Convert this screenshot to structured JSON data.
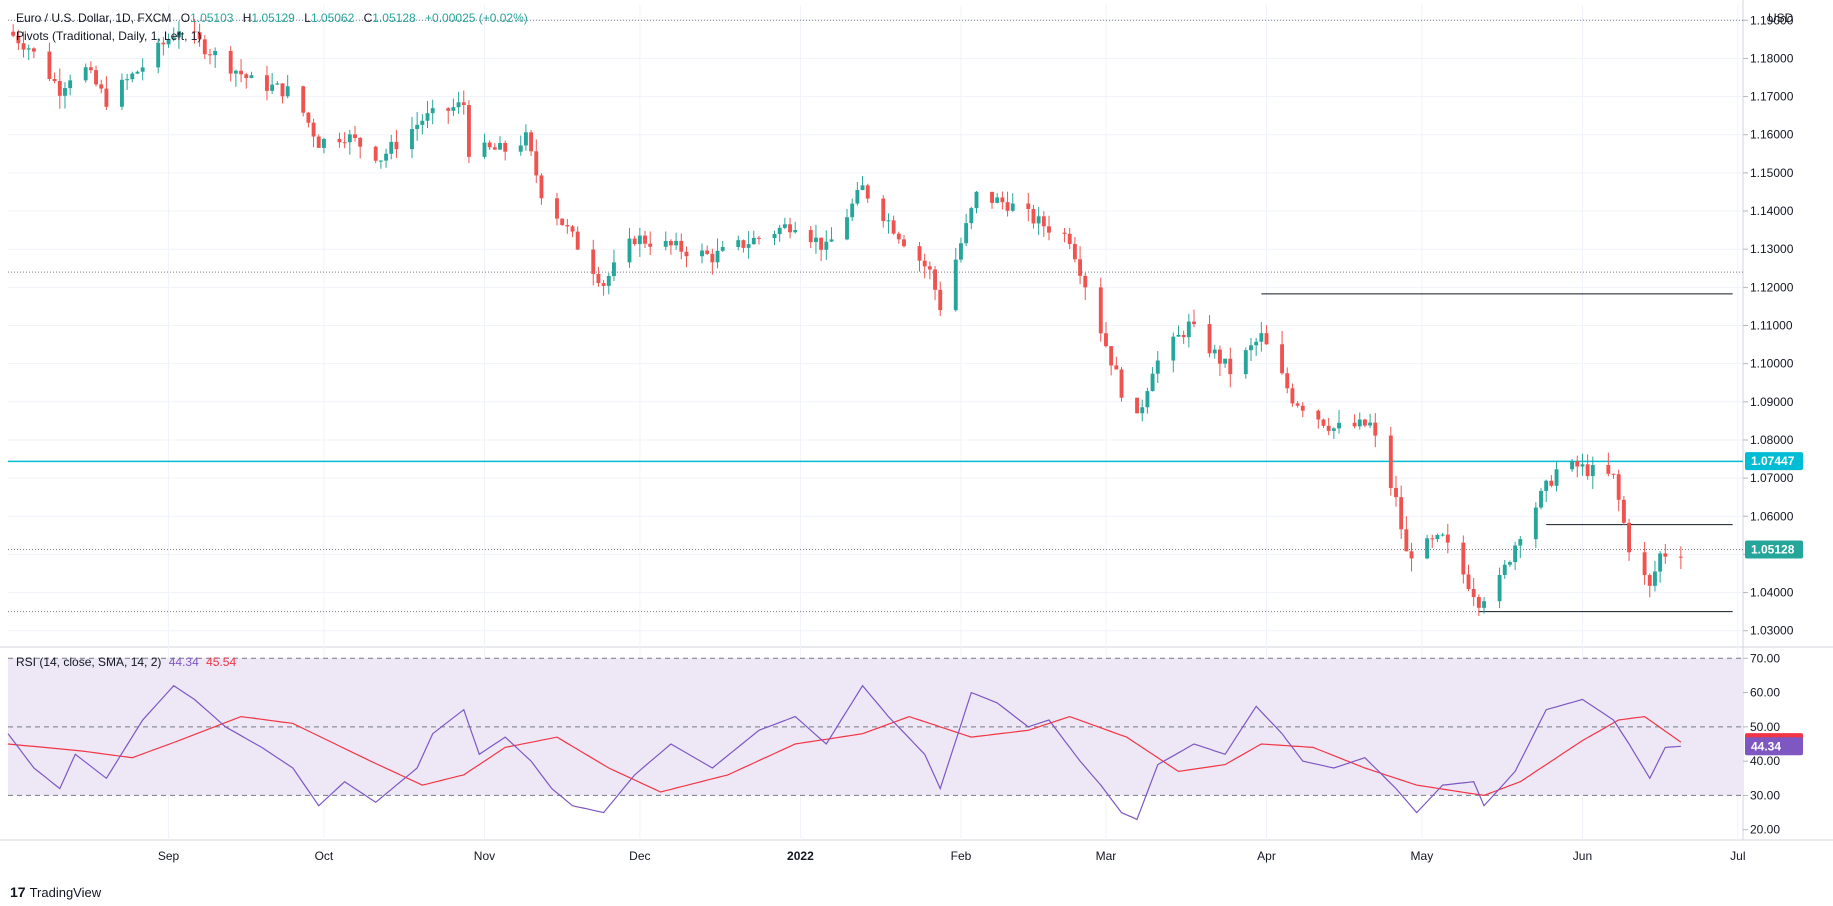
{
  "header": {
    "symbol": "Euro / U.S. Dollar, 1D, FXCM",
    "o_label": "O",
    "o": "1.05103",
    "h_label": "H",
    "h": "1.05129",
    "l_label": "L",
    "l": "1.05062",
    "c_label": "C",
    "c": "1.05128",
    "change": "+0.00025 (+0.02%)",
    "pivots_label": "Pivots (Traditional, Daily, 1, Left, 1)"
  },
  "currency_label": "USD",
  "rsi_header": {
    "label": "RSI (14, close, SMA, 14, 2)",
    "rsi_value": "44.34",
    "ma_value": "45.54"
  },
  "brand": {
    "name": "TradingView",
    "logo_glyph": "17"
  },
  "colors": {
    "up": "#26a69a",
    "down": "#ef5350",
    "price_line": "#00bcd4",
    "rsi_line": "#7e57c2",
    "rsi_ma": "#f23645",
    "rsi_band": "#ede7f6"
  },
  "chart_data": {
    "type": "candlestick",
    "title": "Euro / U.S. Dollar, 1D, FXCM",
    "y_axis_label": "USD",
    "y_ticks": [
      "1.19000",
      "1.18000",
      "1.17000",
      "1.16000",
      "1.15000",
      "1.14000",
      "1.13000",
      "1.12000",
      "1.11000",
      "1.10000",
      "1.09000",
      "1.08000",
      "1.07000",
      "1.06000",
      "1.05000",
      "1.04000",
      "1.03000"
    ],
    "y_range": [
      1.026,
      1.194
    ],
    "x_labels": [
      "Sep",
      "Oct",
      "Nov",
      "Dec",
      "2022",
      "Feb",
      "Mar",
      "Apr",
      "May",
      "Jun",
      "Jul"
    ],
    "x_label_dates": [
      "2021-09-01",
      "2021-10-01",
      "2021-11-01",
      "2021-12-01",
      "2022-01-01",
      "2022-02-01",
      "2022-03-01",
      "2022-04-01",
      "2022-05-01",
      "2022-06-01",
      "2022-07-01"
    ],
    "date_range": [
      "2021-08-01",
      "2022-07-02"
    ],
    "anchors": [
      {
        "date": "2021-08-01",
        "close": 1.187
      },
      {
        "date": "2021-08-05",
        "close": 1.183
      },
      {
        "date": "2021-08-11",
        "close": 1.172
      },
      {
        "date": "2021-08-15",
        "close": 1.179
      },
      {
        "date": "2021-08-20",
        "close": 1.169
      },
      {
        "date": "2021-08-27",
        "close": 1.178
      },
      {
        "date": "2021-09-03",
        "close": 1.188
      },
      {
        "date": "2021-09-08",
        "close": 1.183
      },
      {
        "date": "2021-09-17",
        "close": 1.174
      },
      {
        "date": "2021-09-25",
        "close": 1.171
      },
      {
        "date": "2021-09-30",
        "close": 1.158
      },
      {
        "date": "2021-10-05",
        "close": 1.16
      },
      {
        "date": "2021-10-12",
        "close": 1.154
      },
      {
        "date": "2021-10-20",
        "close": 1.164
      },
      {
        "date": "2021-10-28",
        "close": 1.168
      },
      {
        "date": "2021-10-29",
        "close": 1.156
      },
      {
        "date": "2021-11-05",
        "close": 1.156
      },
      {
        "date": "2021-11-09",
        "close": 1.159
      },
      {
        "date": "2021-11-12",
        "close": 1.145
      },
      {
        "date": "2021-11-24",
        "close": 1.121
      },
      {
        "date": "2021-11-30",
        "close": 1.133
      },
      {
        "date": "2021-12-15",
        "close": 1.128
      },
      {
        "date": "2021-12-31",
        "close": 1.137
      },
      {
        "date": "2022-01-06",
        "close": 1.13
      },
      {
        "date": "2022-01-13",
        "close": 1.146
      },
      {
        "date": "2022-01-20",
        "close": 1.134
      },
      {
        "date": "2022-01-26",
        "close": 1.124
      },
      {
        "date": "2022-01-28",
        "close": 1.115
      },
      {
        "date": "2022-02-04",
        "close": 1.144
      },
      {
        "date": "2022-02-10",
        "close": 1.142
      },
      {
        "date": "2022-02-16",
        "close": 1.137
      },
      {
        "date": "2022-02-22",
        "close": 1.133
      },
      {
        "date": "2022-03-04",
        "close": 1.093
      },
      {
        "date": "2022-03-07",
        "close": 1.085
      },
      {
        "date": "2022-03-10",
        "close": 1.099
      },
      {
        "date": "2022-03-17",
        "close": 1.11
      },
      {
        "date": "2022-03-25",
        "close": 1.098
      },
      {
        "date": "2022-03-31",
        "close": 1.107
      },
      {
        "date": "2022-04-06",
        "close": 1.091
      },
      {
        "date": "2022-04-14",
        "close": 1.083
      },
      {
        "date": "2022-04-21",
        "close": 1.084
      },
      {
        "date": "2022-04-26",
        "close": 1.064
      },
      {
        "date": "2022-04-28",
        "close": 1.05
      },
      {
        "date": "2022-05-05",
        "close": 1.054
      },
      {
        "date": "2022-05-12",
        "close": 1.038
      },
      {
        "date": "2022-05-16",
        "close": 1.043
      },
      {
        "date": "2022-05-20",
        "close": 1.056
      },
      {
        "date": "2022-05-27",
        "close": 1.072
      },
      {
        "date": "2022-05-31",
        "close": 1.073
      },
      {
        "date": "2022-06-07",
        "close": 1.07
      },
      {
        "date": "2022-06-10",
        "close": 1.052
      },
      {
        "date": "2022-06-14",
        "close": 1.041
      },
      {
        "date": "2022-06-16",
        "close": 1.05
      },
      {
        "date": "2022-06-20",
        "close": 1.051
      }
    ],
    "horizontal_levels": [
      {
        "price": 1.0744,
        "from": "2021-08-01",
        "to": "2022-07-02",
        "style": "solid-cyan"
      },
      {
        "price": 1.0513,
        "from": "2021-08-01",
        "to": "2022-07-02",
        "style": "dotted"
      },
      {
        "price": 1.19,
        "from": "2021-08-01",
        "to": "2022-07-02",
        "style": "dotted"
      },
      {
        "price": 1.124,
        "from": "2021-08-01",
        "to": "2022-07-02",
        "style": "dotted"
      },
      {
        "price": 1.035,
        "from": "2021-08-01",
        "to": "2022-05-12",
        "style": "dotted"
      },
      {
        "price": 1.1183,
        "from": "2022-03-31",
        "to": "2022-06-30",
        "style": "solid"
      },
      {
        "price": 1.0578,
        "from": "2022-05-25",
        "to": "2022-06-30",
        "style": "solid"
      },
      {
        "price": 1.035,
        "from": "2022-05-12",
        "to": "2022-06-30",
        "style": "solid"
      }
    ],
    "price_labels": [
      {
        "value": "1.07447",
        "price": 1.07447,
        "kind": "level"
      },
      {
        "value": "1.05128",
        "price": 1.05128,
        "kind": "last"
      }
    ],
    "rsi": {
      "y_ticks": [
        "70.00",
        "60.00",
        "50.00",
        "40.00",
        "30.00",
        "20.00"
      ],
      "y_range": [
        17,
        73
      ],
      "band": [
        30,
        70
      ],
      "midline": 50,
      "rsi_anchors": [
        {
          "date": "2021-08-01",
          "v": 48
        },
        {
          "date": "2021-08-06",
          "v": 38
        },
        {
          "date": "2021-08-11",
          "v": 32
        },
        {
          "date": "2021-08-14",
          "v": 42
        },
        {
          "date": "2021-08-20",
          "v": 35
        },
        {
          "date": "2021-08-27",
          "v": 52
        },
        {
          "date": "2021-09-02",
          "v": 62
        },
        {
          "date": "2021-09-06",
          "v": 58
        },
        {
          "date": "2021-09-12",
          "v": 50
        },
        {
          "date": "2021-09-19",
          "v": 44
        },
        {
          "date": "2021-09-25",
          "v": 38
        },
        {
          "date": "2021-09-30",
          "v": 27
        },
        {
          "date": "2021-10-05",
          "v": 34
        },
        {
          "date": "2021-10-11",
          "v": 28
        },
        {
          "date": "2021-10-19",
          "v": 38
        },
        {
          "date": "2021-10-22",
          "v": 48
        },
        {
          "date": "2021-10-28",
          "v": 55
        },
        {
          "date": "2021-10-31",
          "v": 42
        },
        {
          "date": "2021-11-05",
          "v": 47
        },
        {
          "date": "2021-11-10",
          "v": 40
        },
        {
          "date": "2021-11-14",
          "v": 32
        },
        {
          "date": "2021-11-18",
          "v": 27
        },
        {
          "date": "2021-11-24",
          "v": 25
        },
        {
          "date": "2021-11-30",
          "v": 36
        },
        {
          "date": "2021-12-07",
          "v": 45
        },
        {
          "date": "2021-12-15",
          "v": 38
        },
        {
          "date": "2021-12-24",
          "v": 49
        },
        {
          "date": "2021-12-31",
          "v": 53
        },
        {
          "date": "2022-01-06",
          "v": 45
        },
        {
          "date": "2022-01-13",
          "v": 62
        },
        {
          "date": "2022-01-18",
          "v": 53
        },
        {
          "date": "2022-01-25",
          "v": 42
        },
        {
          "date": "2022-01-28",
          "v": 32
        },
        {
          "date": "2022-02-03",
          "v": 60
        },
        {
          "date": "2022-02-08",
          "v": 57
        },
        {
          "date": "2022-02-14",
          "v": 50
        },
        {
          "date": "2022-02-18",
          "v": 52
        },
        {
          "date": "2022-02-24",
          "v": 40
        },
        {
          "date": "2022-02-28",
          "v": 33
        },
        {
          "date": "2022-03-04",
          "v": 25
        },
        {
          "date": "2022-03-07",
          "v": 23
        },
        {
          "date": "2022-03-11",
          "v": 39
        },
        {
          "date": "2022-03-18",
          "v": 45
        },
        {
          "date": "2022-03-24",
          "v": 42
        },
        {
          "date": "2022-03-30",
          "v": 56
        },
        {
          "date": "2022-04-04",
          "v": 48
        },
        {
          "date": "2022-04-08",
          "v": 40
        },
        {
          "date": "2022-04-14",
          "v": 38
        },
        {
          "date": "2022-04-20",
          "v": 41
        },
        {
          "date": "2022-04-26",
          "v": 32
        },
        {
          "date": "2022-04-30",
          "v": 25
        },
        {
          "date": "2022-05-05",
          "v": 33
        },
        {
          "date": "2022-05-11",
          "v": 34
        },
        {
          "date": "2022-05-13",
          "v": 27
        },
        {
          "date": "2022-05-19",
          "v": 37
        },
        {
          "date": "2022-05-25",
          "v": 55
        },
        {
          "date": "2022-06-01",
          "v": 58
        },
        {
          "date": "2022-06-07",
          "v": 52
        },
        {
          "date": "2022-06-10",
          "v": 45
        },
        {
          "date": "2022-06-14",
          "v": 35
        },
        {
          "date": "2022-06-17",
          "v": 44
        },
        {
          "date": "2022-06-20",
          "v": 44.34
        }
      ],
      "ma_anchors": [
        {
          "date": "2021-08-01",
          "v": 45
        },
        {
          "date": "2021-08-15",
          "v": 43
        },
        {
          "date": "2021-08-25",
          "v": 41
        },
        {
          "date": "2021-09-03",
          "v": 46
        },
        {
          "date": "2021-09-15",
          "v": 53
        },
        {
          "date": "2021-09-25",
          "v": 51
        },
        {
          "date": "2021-10-10",
          "v": 40
        },
        {
          "date": "2021-10-20",
          "v": 33
        },
        {
          "date": "2021-10-28",
          "v": 36
        },
        {
          "date": "2021-11-05",
          "v": 44
        },
        {
          "date": "2021-11-15",
          "v": 47
        },
        {
          "date": "2021-11-25",
          "v": 38
        },
        {
          "date": "2021-12-05",
          "v": 31
        },
        {
          "date": "2021-12-18",
          "v": 36
        },
        {
          "date": "2021-12-31",
          "v": 45
        },
        {
          "date": "2022-01-13",
          "v": 48
        },
        {
          "date": "2022-01-22",
          "v": 53
        },
        {
          "date": "2022-02-03",
          "v": 47
        },
        {
          "date": "2022-02-14",
          "v": 49
        },
        {
          "date": "2022-02-22",
          "v": 53
        },
        {
          "date": "2022-03-05",
          "v": 47
        },
        {
          "date": "2022-03-15",
          "v": 37
        },
        {
          "date": "2022-03-24",
          "v": 39
        },
        {
          "date": "2022-03-31",
          "v": 45
        },
        {
          "date": "2022-04-10",
          "v": 44
        },
        {
          "date": "2022-04-20",
          "v": 38
        },
        {
          "date": "2022-04-30",
          "v": 33
        },
        {
          "date": "2022-05-13",
          "v": 30
        },
        {
          "date": "2022-05-20",
          "v": 34
        },
        {
          "date": "2022-06-01",
          "v": 46
        },
        {
          "date": "2022-06-08",
          "v": 52
        },
        {
          "date": "2022-06-13",
          "v": 53
        },
        {
          "date": "2022-06-20",
          "v": 45.54
        }
      ],
      "labels": [
        {
          "value": "45.54",
          "v": 45.54,
          "kind": "ma"
        },
        {
          "value": "44.34",
          "v": 44.34,
          "kind": "rsi"
        }
      ]
    }
  }
}
